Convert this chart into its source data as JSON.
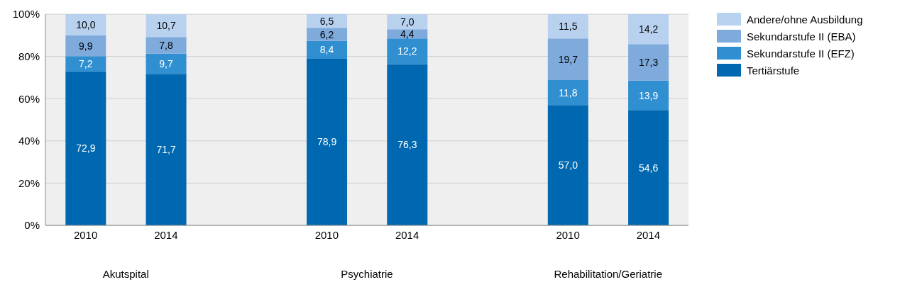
{
  "chart_data": {
    "type": "bar",
    "stacked": true,
    "categories": [
      "2010",
      "2014",
      null,
      "2010",
      "2014",
      null,
      "2010",
      "2014"
    ],
    "series": [
      {
        "name": "Tertiärstufe",
        "color": "#0068b0",
        "values": [
          72.9,
          71.7,
          null,
          78.9,
          76.3,
          null,
          57.0,
          54.6
        ],
        "value_labels": [
          "72,9",
          "71,7",
          null,
          "78,9",
          "76,3",
          null,
          "57,0",
          "54,6"
        ]
      },
      {
        "name": "Sekundarstufe II (EFZ)",
        "color": "#2f8fd1",
        "values": [
          7.2,
          9.7,
          null,
          8.4,
          12.2,
          null,
          11.8,
          13.9
        ],
        "value_labels": [
          "7,2",
          "9,7",
          null,
          "8,4",
          "12,2",
          null,
          "11,8",
          "13,9"
        ]
      },
      {
        "name": "Sekundarstufe II (EBA)",
        "color": "#7eaadc",
        "values": [
          9.9,
          7.8,
          null,
          6.2,
          4.4,
          null,
          19.7,
          17.3
        ],
        "value_labels": [
          "9,9",
          "7,8",
          null,
          "6,2",
          "4,4",
          null,
          "19,7",
          "17,3"
        ]
      },
      {
        "name": "Andere/ohne Ausbildung",
        "color": "#b8d1ef",
        "values": [
          10.0,
          10.7,
          null,
          6.5,
          7.0,
          null,
          11.5,
          14.2
        ],
        "value_labels": [
          "10,0",
          "10,7",
          null,
          "6,5",
          "7,0",
          null,
          "11,5",
          "14,2"
        ]
      }
    ],
    "ylim": [
      0,
      100
    ],
    "yticks": [
      {
        "value": 0,
        "label": "0%"
      },
      {
        "value": 20,
        "label": "20%"
      },
      {
        "value": 40,
        "label": "40%"
      },
      {
        "value": 60,
        "label": "60%"
      },
      {
        "value": 80,
        "label": "80%"
      },
      {
        "value": 100,
        "label": "100%"
      }
    ],
    "grid": "y",
    "legend": "top right",
    "annotations": [
      "Akutspital",
      "Psychiatrie",
      "Rehabilitation/Geriatrie"
    ]
  }
}
